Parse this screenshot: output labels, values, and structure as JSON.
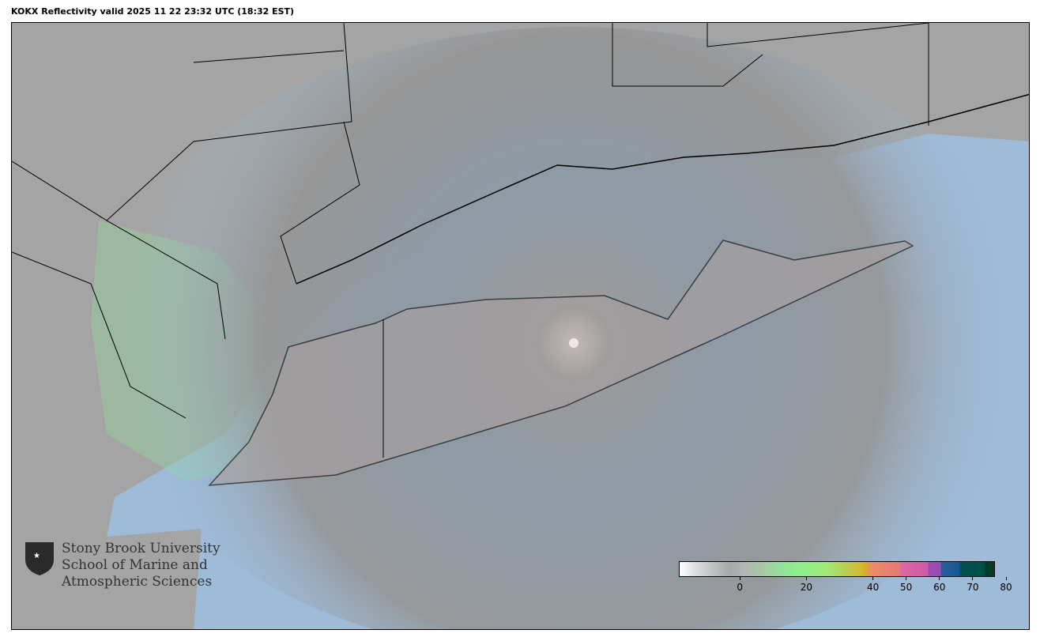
{
  "title": "KOKX Reflectivity valid 2025 11 22 23:32 UTC (18:32 EST)",
  "logo": {
    "line1": "Stony Brook University",
    "line2": "School of Marine and",
    "line3": "Atmospheric Sciences"
  },
  "colorbar": {
    "units_range": [
      -15,
      80
    ],
    "ticks": [
      {
        "value": 0,
        "label": "0"
      },
      {
        "value": 20,
        "label": "20"
      },
      {
        "value": 40,
        "label": "40"
      },
      {
        "value": 50,
        "label": "50"
      },
      {
        "value": 60,
        "label": "60"
      },
      {
        "value": 70,
        "label": "70"
      },
      {
        "value": 80,
        "label": "80"
      }
    ]
  },
  "colors": {
    "ocean": "#9ebbd8",
    "land": "#a4a4a4",
    "echo_green": "#8ee29a",
    "radar_site": "#f4e6e6"
  }
}
